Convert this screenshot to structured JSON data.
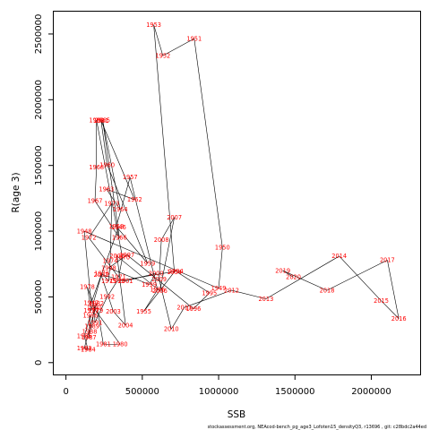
{
  "footer": "stockassessment.org, NEAcod-bench_pg_age3_Lofoten15_densityQ3, r13696 , git: c28bdc2a44ed",
  "colors": {
    "point_label": "#ff0000",
    "line": "#000000"
  },
  "chart_data": {
    "type": "line",
    "title": "",
    "xlabel": "SSB",
    "ylabel": "R(age 3)",
    "xlim": [
      -80000,
      2320000
    ],
    "ylim": [
      -90000,
      2670000
    ],
    "xticks": [
      0,
      500000,
      1000000,
      1500000,
      2000000
    ],
    "xtick_labels": [
      "0",
      "500000",
      "1000000",
      "1500000",
      "2000000"
    ],
    "yticks": [
      0,
      500000,
      1000000,
      1500000,
      2000000,
      2500000
    ],
    "ytick_labels": [
      "0",
      "500000",
      "1000000",
      "1500000",
      "2000000",
      "2500000"
    ],
    "grid": false,
    "legend": "none",
    "points": [
      {
        "year": "1946",
        "x": 345000,
        "y": 1030000
      },
      {
        "year": "1947",
        "x": 165000,
        "y": 455000
      },
      {
        "year": "1948",
        "x": 120000,
        "y": 1000000
      },
      {
        "year": "1949",
        "x": 1000000,
        "y": 565000
      },
      {
        "year": "1950",
        "x": 1025000,
        "y": 875000
      },
      {
        "year": "1951",
        "x": 840000,
        "y": 2465000
      },
      {
        "year": "1952",
        "x": 635000,
        "y": 2335000
      },
      {
        "year": "1953",
        "x": 575000,
        "y": 2570000
      },
      {
        "year": "1954",
        "x": 710000,
        "y": 690000
      },
      {
        "year": "1955",
        "x": 510000,
        "y": 390000
      },
      {
        "year": "1956",
        "x": 600000,
        "y": 555000
      },
      {
        "year": "1957",
        "x": 420000,
        "y": 1410000
      },
      {
        "year": "1958",
        "x": 330000,
        "y": 1035000
      },
      {
        "year": "1959",
        "x": 535000,
        "y": 755000
      },
      {
        "year": "1960",
        "x": 270000,
        "y": 1505000
      },
      {
        "year": "1961",
        "x": 230000,
        "y": 1840000
      },
      {
        "year": "1962",
        "x": 450000,
        "y": 1240000
      },
      {
        "year": "1963",
        "x": 265000,
        "y": 1320000
      },
      {
        "year": "1964",
        "x": 355000,
        "y": 1165000
      },
      {
        "year": "1965",
        "x": 240000,
        "y": 1845000
      },
      {
        "year": "1966",
        "x": 350000,
        "y": 950000
      },
      {
        "year": "1967",
        "x": 190000,
        "y": 1230000
      },
      {
        "year": "1968",
        "x": 200000,
        "y": 1485000
      },
      {
        "year": "1969",
        "x": 200000,
        "y": 1845000
      },
      {
        "year": "1970",
        "x": 370000,
        "y": 800000
      },
      {
        "year": "1971",
        "x": 345000,
        "y": 650000
      },
      {
        "year": "1972",
        "x": 150000,
        "y": 950000
      },
      {
        "year": "1973",
        "x": 300000,
        "y": 1210000
      },
      {
        "year": "1974",
        "x": 290000,
        "y": 775000
      },
      {
        "year": "1975",
        "x": 280000,
        "y": 620000
      },
      {
        "year": "1976",
        "x": 235000,
        "y": 680000
      },
      {
        "year": "1977",
        "x": 165000,
        "y": 395000
      },
      {
        "year": "1978",
        "x": 140000,
        "y": 575000
      },
      {
        "year": "1979",
        "x": 195000,
        "y": 395000
      },
      {
        "year": "1980",
        "x": 355000,
        "y": 140000
      },
      {
        "year": "1981",
        "x": 245000,
        "y": 140000
      },
      {
        "year": "1982",
        "x": 200000,
        "y": 450000
      },
      {
        "year": "1983",
        "x": 120000,
        "y": 110000
      },
      {
        "year": "1984",
        "x": 145000,
        "y": 100000
      },
      {
        "year": "1985",
        "x": 120000,
        "y": 200000
      },
      {
        "year": "1986",
        "x": 160000,
        "y": 360000
      },
      {
        "year": "1987",
        "x": 150000,
        "y": 190000
      },
      {
        "year": "1988",
        "x": 155000,
        "y": 235000
      },
      {
        "year": "1989",
        "x": 170000,
        "y": 275000
      },
      {
        "year": "1990",
        "x": 185000,
        "y": 420000
      },
      {
        "year": "1991",
        "x": 190000,
        "y": 305000
      },
      {
        "year": "1992",
        "x": 270000,
        "y": 500000
      },
      {
        "year": "1993",
        "x": 335000,
        "y": 620000
      },
      {
        "year": "1994",
        "x": 720000,
        "y": 695000
      },
      {
        "year": "1995",
        "x": 940000,
        "y": 530000
      },
      {
        "year": "1996",
        "x": 835000,
        "y": 410000
      },
      {
        "year": "1997",
        "x": 400000,
        "y": 820000
      },
      {
        "year": "1998",
        "x": 280000,
        "y": 720000
      },
      {
        "year": "1999",
        "x": 545000,
        "y": 595000
      },
      {
        "year": "2000",
        "x": 590000,
        "y": 680000
      },
      {
        "year": "2001",
        "x": 390000,
        "y": 620000
      },
      {
        "year": "2002",
        "x": 230000,
        "y": 670000
      },
      {
        "year": "2003",
        "x": 310000,
        "y": 390000
      },
      {
        "year": "2004",
        "x": 390000,
        "y": 285000
      },
      {
        "year": "2005",
        "x": 335000,
        "y": 810000
      },
      {
        "year": "2006",
        "x": 615000,
        "y": 545000
      },
      {
        "year": "2007",
        "x": 710000,
        "y": 1105000
      },
      {
        "year": "2008",
        "x": 625000,
        "y": 935000
      },
      {
        "year": "2009",
        "x": 610000,
        "y": 635000
      },
      {
        "year": "2010",
        "x": 690000,
        "y": 255000
      },
      {
        "year": "2011",
        "x": 775000,
        "y": 420000
      },
      {
        "year": "2012",
        "x": 1085000,
        "y": 550000
      },
      {
        "year": "2013",
        "x": 1310000,
        "y": 485000
      },
      {
        "year": "2014",
        "x": 1790000,
        "y": 810000
      },
      {
        "year": "2015",
        "x": 2065000,
        "y": 470000
      },
      {
        "year": "2016",
        "x": 2180000,
        "y": 335000
      },
      {
        "year": "2017",
        "x": 2105000,
        "y": 780000
      },
      {
        "year": "2018",
        "x": 1710000,
        "y": 550000
      },
      {
        "year": "2019",
        "x": 1420000,
        "y": 700000
      },
      {
        "year": "2020",
        "x": 1490000,
        "y": 650000
      }
    ]
  }
}
